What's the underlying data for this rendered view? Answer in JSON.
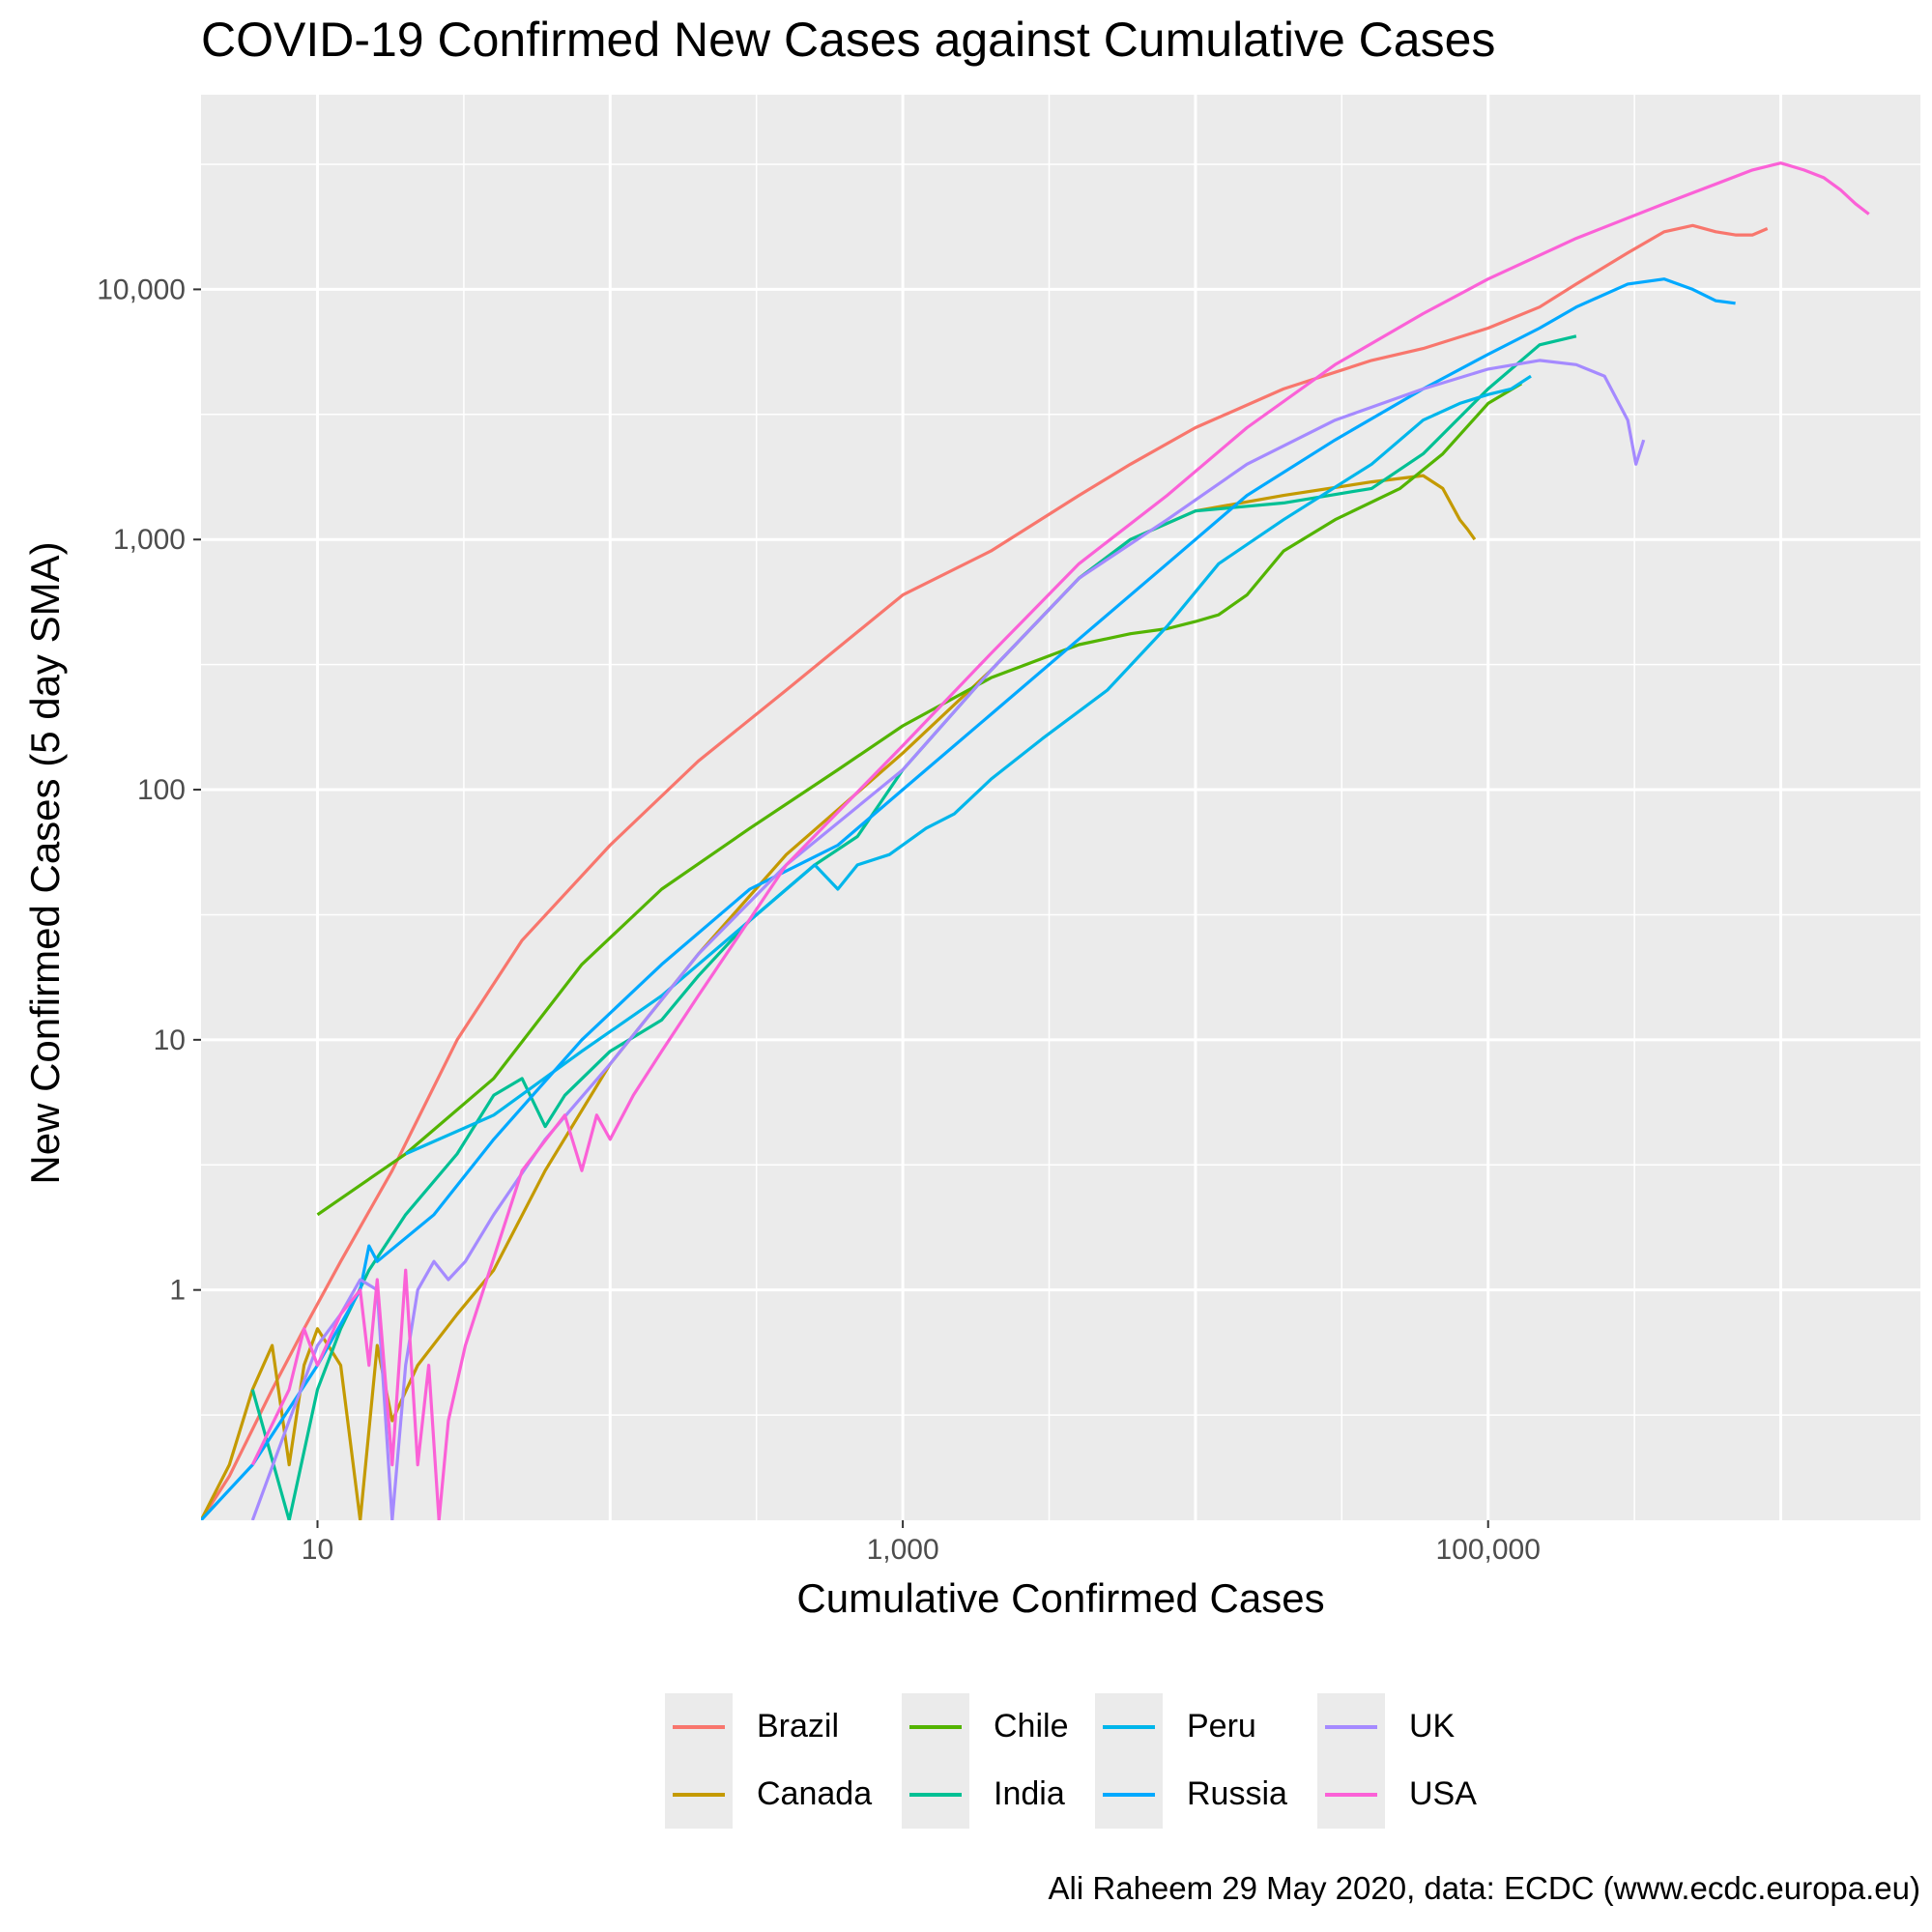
{
  "chart_data": {
    "type": "line",
    "title": "COVID-19 Confirmed New Cases against Cumulative Cases",
    "xlabel": "Cumulative Confirmed Cases",
    "ylabel": "New Confirmed Cases (5 day SMA)",
    "caption": "Ali Raheem 29 May 2020, data: ECDC (www.ecdc.europa.eu)",
    "x_scale": "log10",
    "y_scale": "log10",
    "xlim": [
      4,
      3000000
    ],
    "ylim": [
      0.12,
      60000
    ],
    "x_ticks": [
      10,
      1000,
      100000
    ],
    "x_tick_labels": [
      "10",
      "1,000",
      "100,000"
    ],
    "y_ticks": [
      1,
      10,
      100,
      1000,
      10000
    ],
    "y_tick_labels": [
      "1",
      "10",
      "100",
      "1,000",
      "10,000"
    ],
    "grid": true,
    "legend_position": "bottom",
    "series": [
      {
        "name": "Brazil",
        "color": "#F8766D",
        "points": [
          [
            4,
            0.12
          ],
          [
            5,
            0.18
          ],
          [
            7,
            0.4
          ],
          [
            9,
            0.7
          ],
          [
            12,
            1.3
          ],
          [
            18,
            3
          ],
          [
            30,
            10
          ],
          [
            50,
            25
          ],
          [
            100,
            60
          ],
          [
            200,
            130
          ],
          [
            400,
            250
          ],
          [
            1000,
            600
          ],
          [
            2000,
            900
          ],
          [
            4000,
            1500
          ],
          [
            6000,
            2000
          ],
          [
            10000,
            2800
          ],
          [
            20000,
            4000
          ],
          [
            40000,
            5200
          ],
          [
            60000,
            5800
          ],
          [
            100000,
            7000
          ],
          [
            150000,
            8500
          ],
          [
            200000,
            10500
          ],
          [
            300000,
            14000
          ],
          [
            400000,
            17000
          ],
          [
            500000,
            18000
          ],
          [
            600000,
            17000
          ],
          [
            700000,
            16500
          ],
          [
            800000,
            16500
          ],
          [
            900000,
            17500
          ]
        ]
      },
      {
        "name": "Canada",
        "color": "#C49A00",
        "points": [
          [
            4,
            0.12
          ],
          [
            5,
            0.2
          ],
          [
            6,
            0.4
          ],
          [
            7,
            0.6
          ],
          [
            8,
            0.2
          ],
          [
            9,
            0.5
          ],
          [
            10,
            0.7
          ],
          [
            12,
            0.5
          ],
          [
            14,
            0.12
          ],
          [
            16,
            0.6
          ],
          [
            18,
            0.3
          ],
          [
            22,
            0.5
          ],
          [
            30,
            0.8
          ],
          [
            40,
            1.2
          ],
          [
            60,
            3
          ],
          [
            100,
            8
          ],
          [
            200,
            22
          ],
          [
            400,
            55
          ],
          [
            1000,
            140
          ],
          [
            2000,
            300
          ],
          [
            4000,
            700
          ],
          [
            6000,
            1000
          ],
          [
            10000,
            1300
          ],
          [
            20000,
            1500
          ],
          [
            40000,
            1700
          ],
          [
            60000,
            1800
          ],
          [
            70000,
            1600
          ],
          [
            80000,
            1200
          ],
          [
            85000,
            1100
          ],
          [
            90000,
            1000
          ]
        ]
      },
      {
        "name": "Chile",
        "color": "#53B400",
        "points": [
          [
            10,
            2
          ],
          [
            20,
            3.5
          ],
          [
            40,
            7
          ],
          [
            80,
            20
          ],
          [
            150,
            40
          ],
          [
            300,
            70
          ],
          [
            600,
            120
          ],
          [
            1000,
            180
          ],
          [
            2000,
            280
          ],
          [
            4000,
            380
          ],
          [
            6000,
            420
          ],
          [
            8000,
            440
          ],
          [
            10000,
            470
          ],
          [
            12000,
            500
          ],
          [
            15000,
            600
          ],
          [
            20000,
            900
          ],
          [
            30000,
            1200
          ],
          [
            50000,
            1600
          ],
          [
            70000,
            2200
          ],
          [
            100000,
            3500
          ],
          [
            130000,
            4200
          ]
        ]
      },
      {
        "name": "India",
        "color": "#00C094",
        "points": [
          [
            6,
            0.4
          ],
          [
            8,
            0.12
          ],
          [
            10,
            0.4
          ],
          [
            12,
            0.7
          ],
          [
            15,
            1.2
          ],
          [
            20,
            2
          ],
          [
            30,
            3.5
          ],
          [
            40,
            6
          ],
          [
            50,
            7
          ],
          [
            60,
            4.5
          ],
          [
            70,
            6
          ],
          [
            100,
            9
          ],
          [
            150,
            12
          ],
          [
            200,
            18
          ],
          [
            300,
            30
          ],
          [
            500,
            50
          ],
          [
            700,
            65
          ],
          [
            1000,
            120
          ],
          [
            2000,
            300
          ],
          [
            4000,
            700
          ],
          [
            6000,
            1000
          ],
          [
            10000,
            1300
          ],
          [
            20000,
            1400
          ],
          [
            40000,
            1600
          ],
          [
            60000,
            2200
          ],
          [
            100000,
            4000
          ],
          [
            150000,
            6000
          ],
          [
            200000,
            6500
          ]
        ]
      },
      {
        "name": "Peru",
        "color": "#00B6EB",
        "points": [
          [
            20,
            3.5
          ],
          [
            40,
            5
          ],
          [
            80,
            9
          ],
          [
            150,
            15
          ],
          [
            300,
            30
          ],
          [
            500,
            50
          ],
          [
            600,
            40
          ],
          [
            700,
            50
          ],
          [
            900,
            55
          ],
          [
            1200,
            70
          ],
          [
            1500,
            80
          ],
          [
            2000,
            110
          ],
          [
            3000,
            160
          ],
          [
            5000,
            250
          ],
          [
            8000,
            450
          ],
          [
            12000,
            800
          ],
          [
            20000,
            1200
          ],
          [
            40000,
            2000
          ],
          [
            60000,
            3000
          ],
          [
            80000,
            3500
          ],
          [
            100000,
            3800
          ],
          [
            120000,
            4000
          ],
          [
            140000,
            4500
          ]
        ]
      },
      {
        "name": "Russia",
        "color": "#00A9FF",
        "points": [
          [
            4,
            0.12
          ],
          [
            6,
            0.2
          ],
          [
            10,
            0.5
          ],
          [
            14,
            1
          ],
          [
            15,
            1.5
          ],
          [
            16,
            1.3
          ],
          [
            25,
            2
          ],
          [
            40,
            4
          ],
          [
            80,
            10
          ],
          [
            150,
            20
          ],
          [
            300,
            40
          ],
          [
            600,
            60
          ],
          [
            1000,
            100
          ],
          [
            2000,
            200
          ],
          [
            4000,
            400
          ],
          [
            8000,
            800
          ],
          [
            15000,
            1500
          ],
          [
            30000,
            2500
          ],
          [
            60000,
            4000
          ],
          [
            100000,
            5500
          ],
          [
            150000,
            7000
          ],
          [
            200000,
            8500
          ],
          [
            300000,
            10500
          ],
          [
            400000,
            11000
          ],
          [
            500000,
            10000
          ],
          [
            600000,
            9000
          ],
          [
            700000,
            8800
          ]
        ]
      },
      {
        "name": "UK",
        "color": "#A58AFF",
        "points": [
          [
            6,
            0.12
          ],
          [
            8,
            0.3
          ],
          [
            10,
            0.6
          ],
          [
            12,
            0.8
          ],
          [
            14,
            1.1
          ],
          [
            16,
            1
          ],
          [
            18,
            0.12
          ],
          [
            20,
            0.5
          ],
          [
            22,
            1
          ],
          [
            25,
            1.3
          ],
          [
            28,
            1.1
          ],
          [
            32,
            1.3
          ],
          [
            40,
            2
          ],
          [
            60,
            4
          ],
          [
            100,
            8
          ],
          [
            200,
            22
          ],
          [
            400,
            50
          ],
          [
            1000,
            120
          ],
          [
            2000,
            300
          ],
          [
            4000,
            700
          ],
          [
            8000,
            1200
          ],
          [
            15000,
            2000
          ],
          [
            30000,
            3000
          ],
          [
            60000,
            4000
          ],
          [
            100000,
            4800
          ],
          [
            150000,
            5200
          ],
          [
            200000,
            5000
          ],
          [
            250000,
            4500
          ],
          [
            300000,
            3000
          ],
          [
            320000,
            2000
          ],
          [
            340000,
            2500
          ]
        ]
      },
      {
        "name": "USA",
        "color": "#FB61D7",
        "points": [
          [
            6,
            0.2
          ],
          [
            8,
            0.4
          ],
          [
            9,
            0.7
          ],
          [
            10,
            0.5
          ],
          [
            12,
            0.8
          ],
          [
            14,
            1
          ],
          [
            15,
            0.5
          ],
          [
            16,
            1.1
          ],
          [
            18,
            0.2
          ],
          [
            20,
            1.2
          ],
          [
            22,
            0.2
          ],
          [
            24,
            0.5
          ],
          [
            26,
            0.12
          ],
          [
            28,
            0.3
          ],
          [
            32,
            0.6
          ],
          [
            50,
            3
          ],
          [
            70,
            5
          ],
          [
            80,
            3
          ],
          [
            90,
            5
          ],
          [
            100,
            4
          ],
          [
            120,
            6
          ],
          [
            150,
            9
          ],
          [
            200,
            15
          ],
          [
            400,
            50
          ],
          [
            1000,
            150
          ],
          [
            2000,
            350
          ],
          [
            4000,
            800
          ],
          [
            8000,
            1500
          ],
          [
            15000,
            2800
          ],
          [
            30000,
            5000
          ],
          [
            60000,
            8000
          ],
          [
            100000,
            11000
          ],
          [
            200000,
            16000
          ],
          [
            400000,
            22000
          ],
          [
            800000,
            30000
          ],
          [
            1000000,
            32000
          ],
          [
            1200000,
            30000
          ],
          [
            1400000,
            28000
          ],
          [
            1600000,
            25000
          ],
          [
            1800000,
            22000
          ],
          [
            2000000,
            20000
          ]
        ]
      }
    ]
  }
}
